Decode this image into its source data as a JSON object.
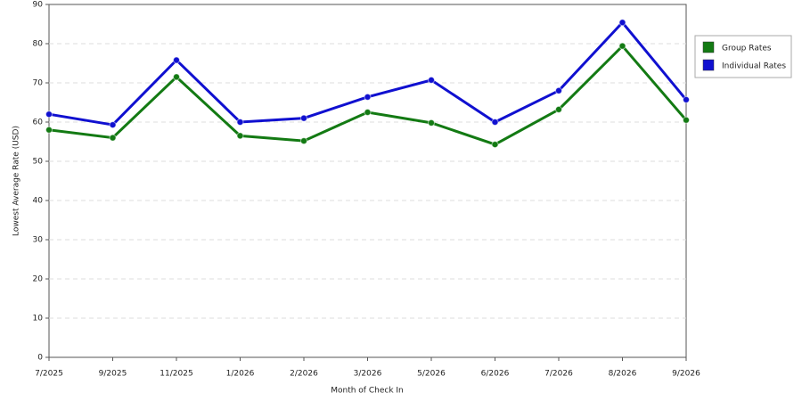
{
  "chart_data": {
    "type": "line",
    "x_label": "Month of Check In",
    "y_label": "Lowest Average Rate (USD)",
    "categories": [
      "7/2025",
      "9/2025",
      "11/2025",
      "1/2026",
      "2/2026",
      "3/2026",
      "5/2026",
      "6/2026",
      "7/2026",
      "8/2026",
      "9/2026"
    ],
    "series": [
      {
        "name": "Group Rates",
        "color": "#137a13",
        "values": [
          58,
          56,
          71.5,
          56.5,
          55.2,
          62.5,
          59.8,
          54.3,
          63.2,
          79.4,
          60.5
        ]
      },
      {
        "name": "Individual Rates",
        "color": "#1010d0",
        "values": [
          62,
          59.3,
          75.8,
          60,
          61,
          66.4,
          70.7,
          60,
          68,
          85.4,
          65.7
        ]
      }
    ],
    "ylim": [
      0,
      90
    ],
    "yticks": [
      0,
      10,
      20,
      30,
      40,
      50,
      60,
      70,
      80,
      90
    ],
    "grid": true,
    "legend": "right"
  }
}
